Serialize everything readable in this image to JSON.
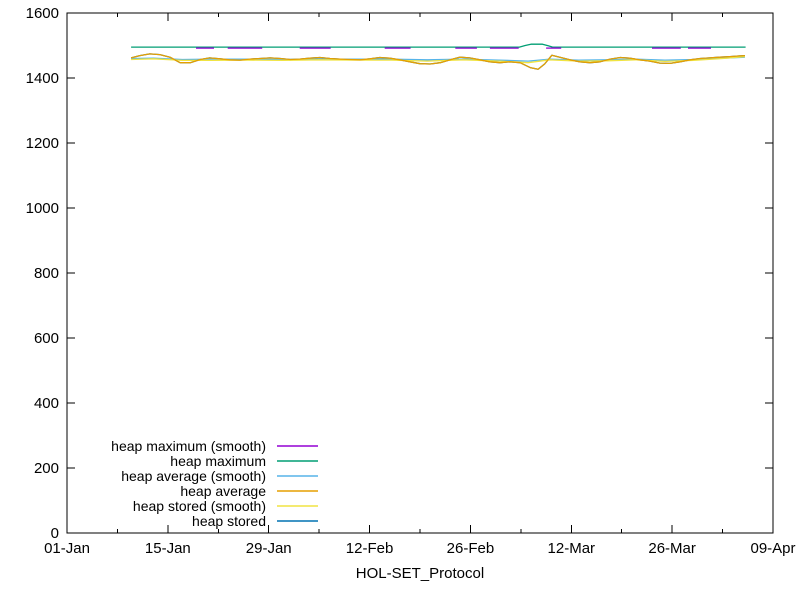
{
  "window": {
    "background": "#ffffff",
    "border_color": "#000000"
  },
  "chart_data": {
    "type": "line",
    "title": "",
    "xlabel": "HOL-SET_Protocol",
    "ylabel": "",
    "grid": false,
    "legend_position": "bottom-left-inside",
    "x_axis": {
      "range_days": [
        0,
        98
      ],
      "major_ticks": [
        {
          "day": 0,
          "label": "01-Jan"
        },
        {
          "day": 14,
          "label": "15-Jan"
        },
        {
          "day": 28,
          "label": "29-Jan"
        },
        {
          "day": 42,
          "label": "12-Feb"
        },
        {
          "day": 56,
          "label": "26-Feb"
        },
        {
          "day": 70,
          "label": "12-Mar"
        },
        {
          "day": 84,
          "label": "26-Mar"
        },
        {
          "day": 98,
          "label": "09-Apr"
        }
      ],
      "minor_tick_days": [
        7,
        21,
        35,
        49,
        63,
        77,
        91
      ]
    },
    "y_axis": {
      "range": [
        0,
        1600
      ],
      "ticks": [
        0,
        200,
        400,
        600,
        800,
        1000,
        1200,
        1400,
        1600
      ]
    },
    "series": [
      {
        "name": "heap maximum (smooth)",
        "color": "#9400d3",
        "segments": [
          [
            [
              17.9,
              1492
            ],
            [
              20.4,
              1492
            ]
          ],
          [
            [
              22.3,
              1492
            ],
            [
              27.1,
              1492
            ]
          ],
          [
            [
              32.3,
              1492
            ],
            [
              36.6,
              1492
            ]
          ],
          [
            [
              44.1,
              1492
            ],
            [
              47.7,
              1492
            ]
          ],
          [
            [
              53.9,
              1492
            ],
            [
              56.9,
              1492
            ]
          ],
          [
            [
              58.7,
              1492
            ],
            [
              62.7,
              1492
            ]
          ],
          [
            [
              66.5,
              1492
            ],
            [
              68.6,
              1492
            ]
          ],
          [
            [
              81.2,
              1492
            ],
            [
              85.2,
              1492
            ]
          ],
          [
            [
              86.2,
              1492
            ],
            [
              89.4,
              1492
            ]
          ]
        ]
      },
      {
        "name": "heap maximum",
        "color": "#009e73",
        "points": [
          [
            8.9,
            1495
          ],
          [
            62.8,
            1495
          ],
          [
            63.6,
            1500
          ],
          [
            64.4,
            1504
          ],
          [
            66,
            1504
          ],
          [
            66.8,
            1499
          ],
          [
            67.4,
            1495
          ],
          [
            94.2,
            1495
          ]
        ]
      },
      {
        "name": "heap average (smooth)",
        "color": "#56b4e9",
        "points": [
          [
            8.9,
            1460
          ],
          [
            12,
            1461
          ],
          [
            16,
            1457
          ],
          [
            20,
            1458
          ],
          [
            25,
            1458
          ],
          [
            30,
            1457
          ],
          [
            35,
            1458
          ],
          [
            40,
            1458
          ],
          [
            45,
            1458
          ],
          [
            50,
            1456
          ],
          [
            55,
            1458
          ],
          [
            60,
            1455
          ],
          [
            64,
            1452
          ],
          [
            67,
            1458
          ],
          [
            71,
            1455
          ],
          [
            75,
            1456
          ],
          [
            79,
            1458
          ],
          [
            83,
            1455
          ],
          [
            87,
            1457
          ],
          [
            91,
            1461
          ],
          [
            94.1,
            1464
          ]
        ]
      },
      {
        "name": "heap average",
        "color": "#e69f00",
        "points": [
          [
            8.9,
            1462
          ],
          [
            10.1,
            1469
          ],
          [
            11.5,
            1474
          ],
          [
            12.9,
            1472
          ],
          [
            14.3,
            1464
          ],
          [
            15.7,
            1447
          ],
          [
            17.1,
            1447
          ],
          [
            18.5,
            1457
          ],
          [
            19.8,
            1462
          ],
          [
            21.2,
            1459
          ],
          [
            22.6,
            1456
          ],
          [
            24,
            1455
          ],
          [
            25.4,
            1458
          ],
          [
            26.8,
            1460
          ],
          [
            28.2,
            1462
          ],
          [
            29.6,
            1460
          ],
          [
            31,
            1457
          ],
          [
            32.3,
            1458
          ],
          [
            33.7,
            1461
          ],
          [
            35.1,
            1463
          ],
          [
            36.5,
            1460
          ],
          [
            37.9,
            1458
          ],
          [
            39.3,
            1457
          ],
          [
            40.7,
            1456
          ],
          [
            42.1,
            1459
          ],
          [
            43.4,
            1463
          ],
          [
            44.8,
            1461
          ],
          [
            46.2,
            1456
          ],
          [
            47.6,
            1450
          ],
          [
            49,
            1444
          ],
          [
            50.4,
            1443
          ],
          [
            51.8,
            1447
          ],
          [
            53.2,
            1456
          ],
          [
            54.5,
            1464
          ],
          [
            55.9,
            1462
          ],
          [
            57.3,
            1456
          ],
          [
            58.7,
            1450
          ],
          [
            60.1,
            1447
          ],
          [
            61.5,
            1450
          ],
          [
            62.9,
            1447
          ],
          [
            64.3,
            1432
          ],
          [
            65.4,
            1427
          ],
          [
            66.3,
            1443
          ],
          [
            67.3,
            1470
          ],
          [
            68.4,
            1464
          ],
          [
            69.8,
            1456
          ],
          [
            71.2,
            1450
          ],
          [
            72.6,
            1447
          ],
          [
            74,
            1450
          ],
          [
            75.4,
            1458
          ],
          [
            76.8,
            1463
          ],
          [
            78.1,
            1461
          ],
          [
            79.5,
            1456
          ],
          [
            80.9,
            1452
          ],
          [
            82.3,
            1446
          ],
          [
            83.7,
            1445
          ],
          [
            85.1,
            1450
          ],
          [
            86.5,
            1456
          ],
          [
            87.9,
            1460
          ],
          [
            89.2,
            1462
          ],
          [
            90.6,
            1464
          ],
          [
            92,
            1466
          ],
          [
            93.4,
            1468
          ],
          [
            94.1,
            1469
          ]
        ]
      },
      {
        "name": "heap stored (smooth)",
        "color": "#f0e442",
        "points": [
          [
            8.9,
            1457
          ],
          [
            12,
            1459
          ],
          [
            16,
            1454
          ],
          [
            20,
            1454
          ],
          [
            25,
            1455
          ],
          [
            30,
            1454
          ],
          [
            35,
            1456
          ],
          [
            40,
            1455
          ],
          [
            45,
            1455
          ],
          [
            50,
            1452
          ],
          [
            55,
            1456
          ],
          [
            60,
            1452
          ],
          [
            64,
            1447
          ],
          [
            67,
            1456
          ],
          [
            71,
            1452
          ],
          [
            75,
            1453
          ],
          [
            79,
            1456
          ],
          [
            83,
            1451
          ],
          [
            87,
            1454
          ],
          [
            91,
            1460
          ],
          [
            94.1,
            1466
          ]
        ]
      },
      {
        "name": "heap stored",
        "color": "#0072b2",
        "points": [
          [
            8.9,
            1462
          ],
          [
            10.1,
            1469
          ],
          [
            11.5,
            1474
          ],
          [
            12.9,
            1472
          ],
          [
            14.3,
            1464
          ],
          [
            15.7,
            1447
          ],
          [
            17.1,
            1447
          ],
          [
            18.5,
            1457
          ],
          [
            19.8,
            1462
          ],
          [
            21.2,
            1459
          ],
          [
            22.6,
            1456
          ],
          [
            24,
            1455
          ],
          [
            25.4,
            1458
          ],
          [
            26.8,
            1460
          ],
          [
            28.2,
            1462
          ],
          [
            29.6,
            1460
          ],
          [
            31,
            1457
          ],
          [
            32.3,
            1458
          ],
          [
            33.7,
            1461
          ],
          [
            35.1,
            1463
          ],
          [
            36.5,
            1460
          ],
          [
            37.9,
            1458
          ],
          [
            39.3,
            1457
          ],
          [
            40.7,
            1456
          ],
          [
            42.1,
            1459
          ],
          [
            43.4,
            1463
          ],
          [
            44.8,
            1461
          ],
          [
            46.2,
            1456
          ],
          [
            47.6,
            1450
          ],
          [
            49,
            1444
          ],
          [
            50.4,
            1443
          ],
          [
            51.8,
            1447
          ],
          [
            53.2,
            1456
          ],
          [
            54.5,
            1464
          ],
          [
            55.9,
            1462
          ],
          [
            57.3,
            1456
          ],
          [
            58.7,
            1450
          ],
          [
            60.1,
            1447
          ],
          [
            61.5,
            1450
          ],
          [
            62.9,
            1447
          ],
          [
            64.3,
            1432
          ],
          [
            65.4,
            1427
          ],
          [
            66.3,
            1443
          ],
          [
            67.3,
            1470
          ],
          [
            68.4,
            1464
          ],
          [
            69.8,
            1456
          ],
          [
            71.2,
            1450
          ],
          [
            72.6,
            1447
          ],
          [
            74,
            1450
          ],
          [
            75.4,
            1458
          ],
          [
            76.8,
            1463
          ],
          [
            78.1,
            1461
          ],
          [
            79.5,
            1456
          ],
          [
            80.9,
            1452
          ],
          [
            82.3,
            1446
          ],
          [
            83.7,
            1445
          ],
          [
            85.1,
            1450
          ],
          [
            86.5,
            1456
          ],
          [
            87.9,
            1460
          ],
          [
            89.2,
            1462
          ],
          [
            90.6,
            1464
          ],
          [
            92,
            1466
          ],
          [
            93.4,
            1468
          ],
          [
            94.1,
            1469
          ]
        ]
      }
    ],
    "draw_order": [
      "heap stored",
      "heap average (smooth)",
      "heap stored (smooth)",
      "heap average",
      "heap maximum",
      "heap maximum (smooth)"
    ]
  }
}
